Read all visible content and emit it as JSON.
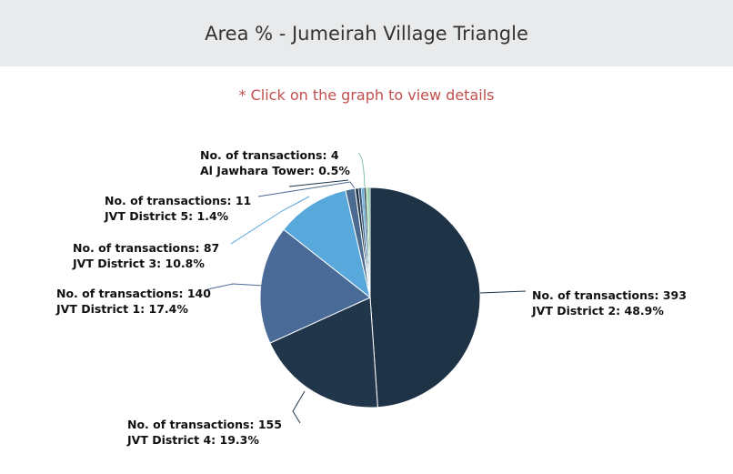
{
  "header": {
    "title": "Area % - Jumeirah Village Triangle"
  },
  "hint": "* Click on the graph to view details",
  "chart_data": {
    "type": "pie",
    "title": "Area % - Jumeirah Village Triangle",
    "slices": [
      {
        "name": "JVT District 2",
        "transactions": 393,
        "percent": 48.9,
        "color": "#1f3347",
        "line1": "No. of transactions: 393",
        "line2": "JVT District 2: 48.9%"
      },
      {
        "name": "JVT District 4",
        "transactions": 155,
        "percent": 19.3,
        "color": "#21364a",
        "line1": "No. of transactions: 155",
        "line2": "JVT District 4: 19.3%"
      },
      {
        "name": "JVT District 1",
        "transactions": 140,
        "percent": 17.4,
        "color": "#4a6a97",
        "line1": "No. of transactions: 140",
        "line2": "JVT District 1: 17.4%"
      },
      {
        "name": "JVT District 3",
        "transactions": 87,
        "percent": 10.8,
        "color": "#58a8dc",
        "line1": "No. of transactions: 87",
        "line2": "JVT District 3: 10.8%"
      },
      {
        "name": "JVT District 5",
        "transactions": 11,
        "percent": 1.4,
        "color": "#4a6a8f",
        "line1": "No. of transactions: 11",
        "line2": "JVT District 5: 1.4%"
      },
      {
        "name": "Al Jawhara Tower",
        "transactions": 4,
        "percent": 0.5,
        "color": "#1f3347",
        "line1": "No. of transactions: 4",
        "line2": "Al Jawhara Tower: 0.5%"
      }
    ]
  }
}
